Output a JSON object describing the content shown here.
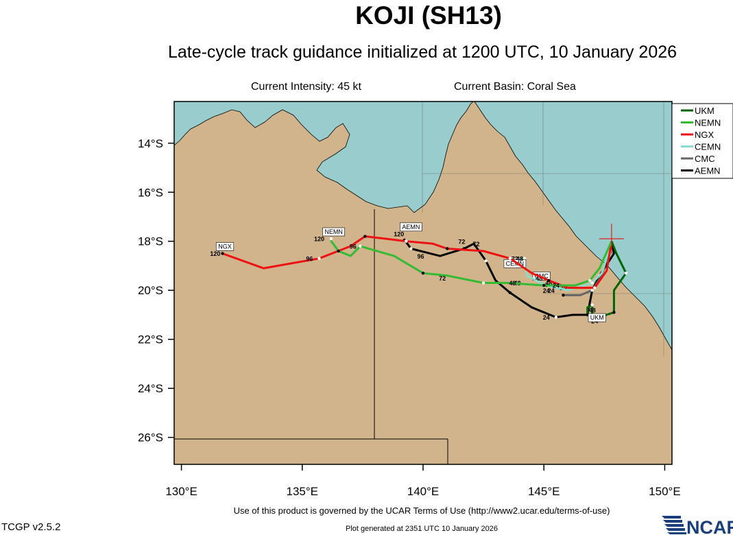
{
  "header": {
    "title": "KOJI (SH13)",
    "subtitle": "Late-cycle track guidance initialized at 1200 UTC, 10 January 2026",
    "current_intensity": "Current Intensity: 45 kt",
    "current_basin": "Current Basin: Coral Sea"
  },
  "footer": {
    "terms": "Use of this product is governed by the UCAR Terms of Use (http://www2.ucar.edu/terms-of-use)",
    "version": "TCGP v2.5.2",
    "generated": "Plot generated at 2351 UTC   10 January 2026",
    "logo_text": "NCAR"
  },
  "map": {
    "lon_range": [
      129.7,
      150.3
    ],
    "lat_range": [
      -27.1,
      -12.3
    ],
    "x_ticks": [
      "130°E",
      "135°E",
      "140°E",
      "145°E",
      "150°E"
    ],
    "y_ticks": [
      "14°S",
      "16°S",
      "18°S",
      "20°S",
      "22°S",
      "24°S",
      "26°S"
    ],
    "colors": {
      "land": "#d2b48c",
      "ocean": "#99cccc",
      "border": "#000000"
    },
    "current_position": {
      "lon": 147.8,
      "lat": -17.9,
      "color": "#dd2222"
    }
  },
  "legend": [
    {
      "name": "UKM",
      "color": "#006400"
    },
    {
      "name": "NEMN",
      "color": "#33bb33"
    },
    {
      "name": "NGX",
      "color": "#ee1111"
    },
    {
      "name": "CEMN",
      "color": "#88ddcc"
    },
    {
      "name": "CMC",
      "color": "#666666"
    },
    {
      "name": "AEMN",
      "color": "#000000"
    }
  ],
  "chart_data": {
    "type": "line",
    "xlabel": "",
    "ylabel": "",
    "series": [
      {
        "name": "UKM",
        "color": "#006400",
        "points": [
          [
            147.8,
            -18.0
          ],
          [
            148.0,
            -18.5
          ],
          [
            148.4,
            -19.3
          ],
          [
            147.9,
            -20.0
          ],
          [
            147.9,
            -20.9
          ],
          [
            147.0,
            -21.2
          ],
          [
            147.0,
            -20.6
          ],
          [
            146.8,
            -20.7
          ],
          [
            146.8,
            -21.0
          ]
        ],
        "labels": [
          {
            "lon": 147.1,
            "lat": -21.35,
            "text": "24"
          },
          {
            "lon": 147.0,
            "lat": -20.9,
            "text": "48"
          }
        ],
        "tag": {
          "lon": 147.2,
          "lat": -21.2,
          "text": "UKM"
        }
      },
      {
        "name": "NEMN",
        "color": "#33bb33",
        "points": [
          [
            147.8,
            -18.0
          ],
          [
            147.3,
            -19.1
          ],
          [
            146.9,
            -19.6
          ],
          [
            146.3,
            -19.8
          ],
          [
            145.0,
            -19.8
          ],
          [
            143.5,
            -19.7
          ],
          [
            142.5,
            -19.7
          ],
          [
            141.0,
            -19.4
          ],
          [
            140.0,
            -19.3
          ],
          [
            138.8,
            -18.6
          ],
          [
            137.4,
            -18.2
          ],
          [
            137.0,
            -18.6
          ],
          [
            136.5,
            -18.4
          ],
          [
            136.2,
            -18.0
          ],
          [
            136.2,
            -17.9
          ]
        ],
        "labels": [
          {
            "lon": 145.5,
            "lat": -19.9,
            "text": "24"
          },
          {
            "lon": 143.7,
            "lat": -19.8,
            "text": "48"
          },
          {
            "lon": 140.8,
            "lat": -19.6,
            "text": "72"
          },
          {
            "lon": 137.1,
            "lat": -18.3,
            "text": "96"
          },
          {
            "lon": 135.7,
            "lat": -18.0,
            "text": "120"
          }
        ],
        "tag": {
          "lon": 136.3,
          "lat": -17.7,
          "text": "NEMN"
        }
      },
      {
        "name": "NGX",
        "color": "#ee1111",
        "points": [
          [
            147.8,
            -18.0
          ],
          [
            147.6,
            -19.2
          ],
          [
            147.1,
            -19.9
          ],
          [
            146.0,
            -19.9
          ],
          [
            145.2,
            -19.6
          ],
          [
            144.5,
            -19.3
          ],
          [
            143.6,
            -18.7
          ],
          [
            142.5,
            -18.4
          ],
          [
            141.0,
            -18.3
          ],
          [
            140.4,
            -18.1
          ],
          [
            139.3,
            -18.0
          ],
          [
            138.5,
            -17.9
          ],
          [
            137.6,
            -17.8
          ],
          [
            137.0,
            -18.2
          ],
          [
            135.7,
            -18.7
          ],
          [
            133.4,
            -19.1
          ],
          [
            131.7,
            -18.5
          ]
        ],
        "labels": [
          {
            "lon": 145.1,
            "lat": -20.1,
            "text": "24"
          },
          {
            "lon": 144.0,
            "lat": -18.8,
            "text": "48"
          },
          {
            "lon": 142.2,
            "lat": -18.2,
            "text": "72"
          },
          {
            "lon": 135.3,
            "lat": -18.8,
            "text": "96"
          },
          {
            "lon": 131.4,
            "lat": -18.6,
            "text": "120"
          }
        ],
        "tag": {
          "lon": 131.8,
          "lat": -18.3,
          "text": "NGX"
        }
      },
      {
        "name": "CEMN",
        "color": "#88ddcc",
        "points": [
          [
            147.8,
            -18.0
          ],
          [
            147.4,
            -19.3
          ],
          [
            147.0,
            -19.7
          ],
          [
            146.0,
            -20.0
          ],
          [
            145.1,
            -19.8
          ],
          [
            144.3,
            -19.4
          ],
          [
            144.2,
            -18.7
          ],
          [
            143.6,
            -18.8
          ]
        ],
        "labels": [
          {
            "lon": 145.3,
            "lat": -20.1,
            "text": "24"
          },
          {
            "lon": 144.8,
            "lat": -19.6,
            "text": "48"
          },
          {
            "lon": 143.8,
            "lat": -18.8,
            "text": "72"
          }
        ],
        "tag": {
          "lon": 143.8,
          "lat": -19.0,
          "text": "CEMN"
        }
      },
      {
        "name": "CMC",
        "color": "#666666",
        "points": [
          [
            147.8,
            -18.0
          ],
          [
            147.4,
            -19.4
          ],
          [
            147.0,
            -20.0
          ],
          [
            146.5,
            -20.2
          ],
          [
            145.8,
            -20.2
          ]
        ],
        "labels": [
          {
            "lon": 145.8,
            "lat": -20.0,
            "text": "24"
          },
          {
            "lon": 145.2,
            "lat": -19.8,
            "text": "48"
          }
        ],
        "tag": {
          "lon": 144.9,
          "lat": -19.5,
          "text": "CMC"
        }
      },
      {
        "name": "AEMN",
        "color": "#000000",
        "points": [
          [
            147.8,
            -18.0
          ],
          [
            147.9,
            -18.5
          ],
          [
            147.3,
            -19.4
          ],
          [
            147.0,
            -20.0
          ],
          [
            146.8,
            -21.0
          ],
          [
            146.2,
            -21.0
          ],
          [
            145.5,
            -21.1
          ],
          [
            144.5,
            -20.7
          ],
          [
            143.6,
            -20.1
          ],
          [
            143.0,
            -19.6
          ],
          [
            142.6,
            -18.8
          ],
          [
            142.1,
            -18.1
          ],
          [
            141.7,
            -18.3
          ],
          [
            140.7,
            -18.6
          ],
          [
            139.5,
            -18.3
          ],
          [
            139.2,
            -17.9
          ]
        ],
        "labels": [
          {
            "lon": 145.1,
            "lat": -21.2,
            "text": "24"
          },
          {
            "lon": 143.9,
            "lat": -19.8,
            "text": "48"
          },
          {
            "lon": 141.6,
            "lat": -18.1,
            "text": "72"
          },
          {
            "lon": 139.9,
            "lat": -18.7,
            "text": "96"
          },
          {
            "lon": 139.0,
            "lat": -17.8,
            "text": "120"
          }
        ],
        "tag": {
          "lon": 139.5,
          "lat": -17.5,
          "text": "AEMN"
        }
      }
    ]
  }
}
